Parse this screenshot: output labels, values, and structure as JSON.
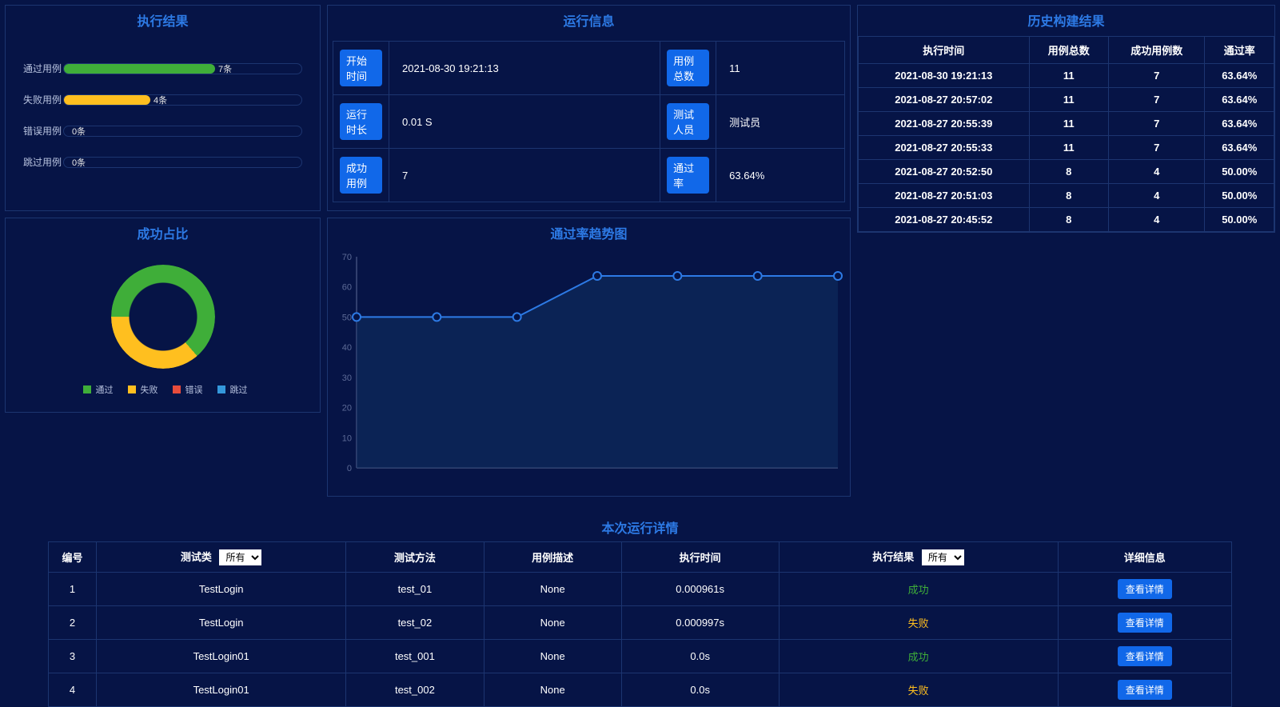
{
  "colors": {
    "background": "#061446",
    "border": "#1c3570",
    "title": "#2d7ae5",
    "button": "#1168e9",
    "pass": "#3fae39",
    "fail": "#ffbf1f",
    "error": "#e74c3c",
    "skip": "#3498db",
    "axis": "#5c6a96",
    "line": "#2d7ae5"
  },
  "exec_result": {
    "title": "执行结果",
    "bars": [
      {
        "label": "通过用例",
        "count": 7,
        "total": 11,
        "text": "7条",
        "color": "#3fae39"
      },
      {
        "label": "失败用例",
        "count": 4,
        "total": 11,
        "text": "4条",
        "color": "#ffbf1f"
      },
      {
        "label": "错误用例",
        "count": 0,
        "total": 11,
        "text": "0条",
        "color": "#e74c3c"
      },
      {
        "label": "跳过用例",
        "count": 0,
        "total": 11,
        "text": "0条",
        "color": "#3498db"
      }
    ]
  },
  "success_ratio": {
    "title": "成功占比",
    "segments": [
      {
        "label": "通过",
        "value": 7,
        "color": "#3fae39"
      },
      {
        "label": "失败",
        "value": 4,
        "color": "#ffbf1f"
      },
      {
        "label": "错误",
        "value": 0,
        "color": "#e74c3c"
      },
      {
        "label": "跳过",
        "value": 0,
        "color": "#3498db"
      }
    ]
  },
  "run_info": {
    "title": "运行信息",
    "rows": [
      {
        "k1": "开始时间",
        "v1": "2021-08-30 19:21:13",
        "k2": "用例总数",
        "v2": "11"
      },
      {
        "k1": "运行时长",
        "v1": "0.01 S",
        "k2": "测试人员",
        "v2": "测试员"
      },
      {
        "k1": "成功用例",
        "v1": "7",
        "k2": "通过率",
        "v2": "63.64%"
      }
    ]
  },
  "trend": {
    "title": "通过率趋势图",
    "y_ticks": [
      0,
      10,
      20,
      30,
      40,
      50,
      60,
      70
    ],
    "ylim": [
      0,
      70
    ],
    "values": [
      50,
      50,
      50,
      63.64,
      63.64,
      63.64,
      63.64
    ],
    "line_color": "#2d7ae5",
    "marker_fill": "#061446",
    "marker_stroke": "#2d7ae5",
    "area_fill": "#113063",
    "axis_color": "#5c6a96"
  },
  "history": {
    "title": "历史构建结果",
    "columns": [
      "执行时间",
      "用例总数",
      "成功用例数",
      "通过率"
    ],
    "rows": [
      [
        "2021-08-30 19:21:13",
        "11",
        "7",
        "63.64%"
      ],
      [
        "2021-08-27 20:57:02",
        "11",
        "7",
        "63.64%"
      ],
      [
        "2021-08-27 20:55:39",
        "11",
        "7",
        "63.64%"
      ],
      [
        "2021-08-27 20:55:33",
        "11",
        "7",
        "63.64%"
      ],
      [
        "2021-08-27 20:52:50",
        "8",
        "4",
        "50.00%"
      ],
      [
        "2021-08-27 20:51:03",
        "8",
        "4",
        "50.00%"
      ],
      [
        "2021-08-27 20:45:52",
        "8",
        "4",
        "50.00%"
      ]
    ]
  },
  "details": {
    "title": "本次运行详情",
    "columns": {
      "id": "编号",
      "class": "测试类",
      "method": "测试方法",
      "desc": "用例描述",
      "time": "执行时间",
      "result": "执行结果",
      "info": "详细信息"
    },
    "filter_all": "所有",
    "btn_label": "查看详情",
    "rows": [
      {
        "id": "1",
        "class": "TestLogin",
        "method": "test_01",
        "desc": "None",
        "time": "0.000961s",
        "result": "成功",
        "status": "success"
      },
      {
        "id": "2",
        "class": "TestLogin",
        "method": "test_02",
        "desc": "None",
        "time": "0.000997s",
        "result": "失败",
        "status": "fail"
      },
      {
        "id": "3",
        "class": "TestLogin01",
        "method": "test_001",
        "desc": "None",
        "time": "0.0s",
        "result": "成功",
        "status": "success"
      },
      {
        "id": "4",
        "class": "TestLogin01",
        "method": "test_002",
        "desc": "None",
        "time": "0.0s",
        "result": "失败",
        "status": "fail"
      }
    ]
  }
}
